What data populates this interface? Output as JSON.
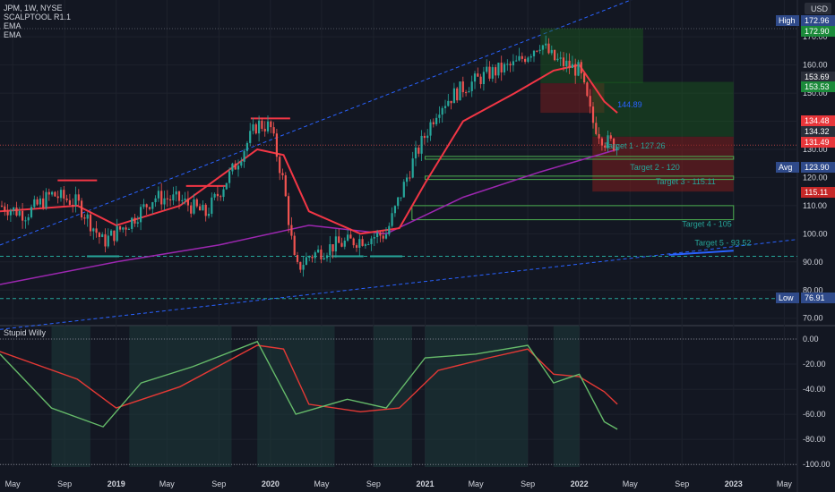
{
  "legend": {
    "symbol": "JPM, 1W, NYSE",
    "indicators": [
      "SCALPTOOL R1.1",
      "EMA",
      "EMA"
    ],
    "sub_title": "Stupid Willy"
  },
  "currency": "USD",
  "colors": {
    "background": "#131722",
    "bull": "#26a69a",
    "bear": "#ef5350",
    "ema_fast": "#f23645",
    "ema_slow": "#9c27b0",
    "target_line": "#4caf50",
    "trendline": "#2962ff",
    "tag_green": "#1b8a3a",
    "tag_red": "#e8363a",
    "tag_blue": "#2f4a8a",
    "tag_gray": "#2a2e39"
  },
  "chart_data": [
    {
      "type": "candlestick",
      "title": "JPM, 1W, NYSE",
      "x_tick_labels": [
        "May",
        "Sep",
        "2019",
        "May",
        "Sep",
        "2020",
        "May",
        "Sep",
        "2021",
        "May",
        "Sep",
        "2022",
        "May",
        "Sep",
        "2023",
        "May"
      ],
      "y_tick_labels": [
        "170.00",
        "160.00",
        "150.00",
        "140.00",
        "130.00",
        "120.00",
        "110.00",
        "100.00",
        "90.00",
        "80.00",
        "70.00"
      ],
      "ylim": [
        68,
        178
      ],
      "x_range": [
        "2018-04",
        "2023-06"
      ],
      "series_close": [
        [
          "2018-04",
          110
        ],
        [
          "2018-06",
          107
        ],
        [
          "2018-08",
          114
        ],
        [
          "2018-10",
          111
        ],
        [
          "2018-12",
          97
        ],
        [
          "2019-02",
          104
        ],
        [
          "2019-04",
          113
        ],
        [
          "2019-06",
          112
        ],
        [
          "2019-08",
          107
        ],
        [
          "2019-10",
          122
        ],
        [
          "2019-12",
          139
        ],
        [
          "2020-01",
          138
        ],
        [
          "2020-02",
          118
        ],
        [
          "2020-03",
          87
        ],
        [
          "2020-04",
          92
        ],
        [
          "2020-06",
          96
        ],
        [
          "2020-08",
          98
        ],
        [
          "2020-10",
          100
        ],
        [
          "2020-12",
          125
        ],
        [
          "2021-02",
          145
        ],
        [
          "2021-04",
          152
        ],
        [
          "2021-06",
          157
        ],
        [
          "2021-08",
          160
        ],
        [
          "2021-10",
          168
        ],
        [
          "2021-11",
          162
        ],
        [
          "2022-01",
          158
        ],
        [
          "2022-02",
          140
        ],
        [
          "2022-03",
          133
        ],
        [
          "2022-04",
          131.49
        ]
      ],
      "ema_fast": [
        [
          "2018-04",
          108
        ],
        [
          "2018-10",
          110
        ],
        [
          "2019-01",
          103
        ],
        [
          "2019-06",
          110
        ],
        [
          "2019-12",
          130
        ],
        [
          "2020-02",
          128
        ],
        [
          "2020-04",
          108
        ],
        [
          "2020-08",
          100
        ],
        [
          "2020-11",
          102
        ],
        [
          "2021-01",
          118
        ],
        [
          "2021-04",
          140
        ],
        [
          "2021-08",
          150
        ],
        [
          "2021-11",
          158
        ],
        [
          "2022-01",
          160
        ],
        [
          "2022-03",
          147
        ],
        [
          "2022-04",
          143
        ]
      ],
      "ema_slow": [
        [
          "2018-04",
          82
        ],
        [
          "2019-01",
          90
        ],
        [
          "2019-09",
          96
        ],
        [
          "2020-04",
          103
        ],
        [
          "2020-10",
          100
        ],
        [
          "2021-04",
          113
        ],
        [
          "2021-10",
          122
        ],
        [
          "2022-04",
          130
        ]
      ],
      "price_tags": [
        {
          "label": "High",
          "value": "172.96"
        },
        {
          "value": "172.90"
        },
        {
          "value": "153.69"
        },
        {
          "value": "153.53"
        },
        {
          "value": "134.48"
        },
        {
          "value": "134.32"
        },
        {
          "value": "131.49"
        },
        {
          "label": "Avg",
          "value": "123.90"
        },
        {
          "value": "115.11"
        },
        {
          "label": "Low",
          "value": "76.91"
        }
      ],
      "annotations": [
        {
          "text": "144.89",
          "value": 144.89
        },
        {
          "text": "Target 1 - 127.26",
          "value": 127.26
        },
        {
          "text": "Target 2 - 120",
          "value": 120
        },
        {
          "text": "Target 3 - 115.11",
          "value": 115.11
        },
        {
          "text": "Target 4 - 105",
          "value": 105
        },
        {
          "text": "Target 5 - 93.52",
          "value": 93.52
        }
      ]
    },
    {
      "type": "line",
      "title": "Stupid Willy",
      "y_tick_labels": [
        "0.00",
        "-20.00",
        "-40.00",
        "-60.00",
        "-80.00",
        "-100.00"
      ],
      "ylim": [
        -102,
        5
      ],
      "series": [
        {
          "values": [
            [
              "2018-04",
              -10
            ],
            [
              "2018-10",
              -32
            ],
            [
              "2019-01",
              -55
            ],
            [
              "2019-06",
              -38
            ],
            [
              "2019-12",
              -5
            ],
            [
              "2020-02",
              -8
            ],
            [
              "2020-04",
              -52
            ],
            [
              "2020-08",
              -58
            ],
            [
              "2020-11",
              -55
            ],
            [
              "2021-02",
              -25
            ],
            [
              "2021-06",
              -15
            ],
            [
              "2021-09",
              -8
            ],
            [
              "2021-11",
              -28
            ],
            [
              "2022-01",
              -30
            ],
            [
              "2022-03",
              -42
            ],
            [
              "2022-04",
              -52
            ]
          ]
        },
        {
          "values": [
            [
              "2018-04",
              -12
            ],
            [
              "2018-08",
              -55
            ],
            [
              "2018-12",
              -70
            ],
            [
              "2019-03",
              -35
            ],
            [
              "2019-07",
              -22
            ],
            [
              "2019-12",
              -2
            ],
            [
              "2020-03",
              -60
            ],
            [
              "2020-07",
              -48
            ],
            [
              "2020-10",
              -55
            ],
            [
              "2021-01",
              -15
            ],
            [
              "2021-05",
              -12
            ],
            [
              "2021-09",
              -5
            ],
            [
              "2021-11",
              -35
            ],
            [
              "2022-01",
              -28
            ],
            [
              "2022-03",
              -66
            ],
            [
              "2022-04",
              -72
            ]
          ]
        }
      ]
    }
  ]
}
